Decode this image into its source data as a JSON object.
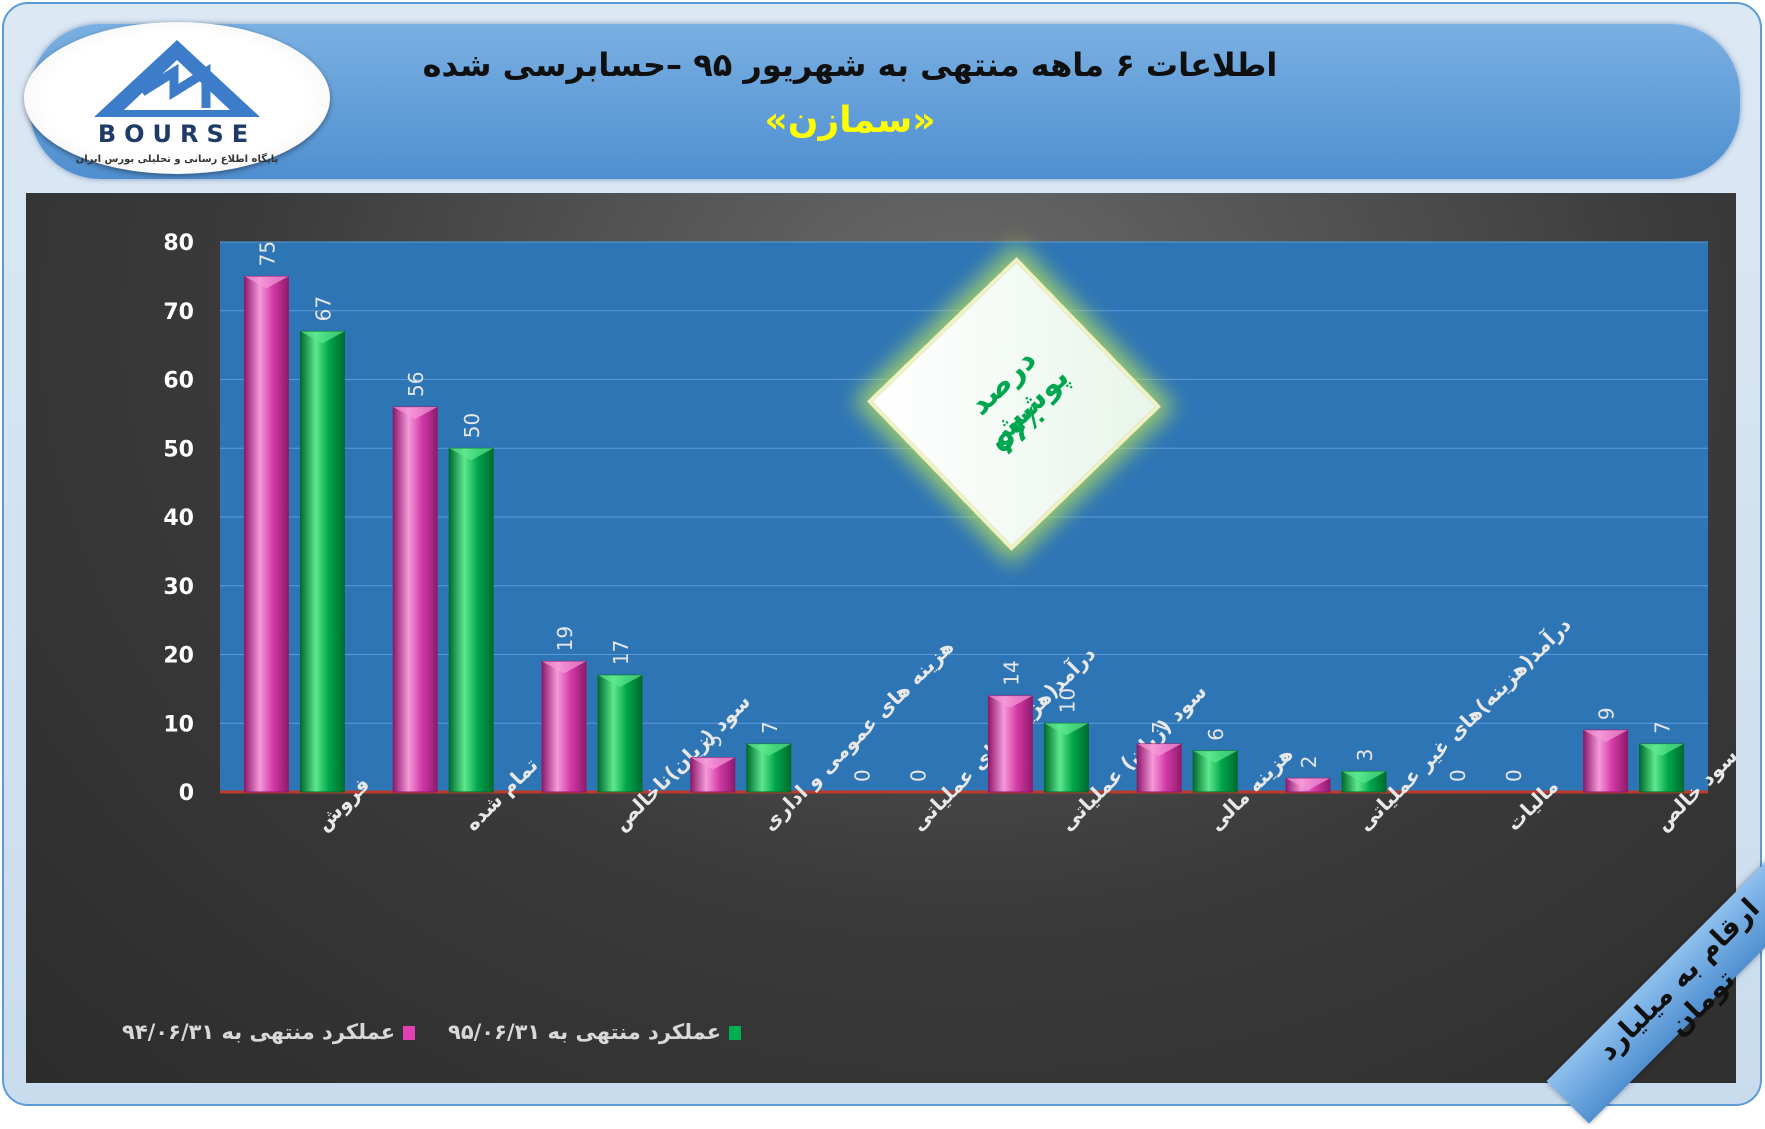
{
  "header": {
    "title": "اطلاعات ۶ ماهه منتهی به شهریور ۹۵ –حسابرسی شده",
    "subtitle": "«سمازن»"
  },
  "logo": {
    "name": "BOURSE",
    "tagline": "پایگاه اطلاع رسانی و تحلیلی بورس ایران"
  },
  "badge": {
    "line1": "درصد پوشش",
    "line2": "۶۶٪"
  },
  "corner_note": "ارقام به میلیارد تومان",
  "colors": {
    "series1": "#e040b0",
    "series2": "#00b050",
    "plot_bg": "#2e75b6",
    "header": "#5b9bd5",
    "title_sub": "#ffff00",
    "badge_text": "#00a650"
  },
  "chart_data": {
    "type": "bar",
    "categories": [
      "فروش",
      "بهای تمام شده",
      "سود (زیان)ناخالص",
      "هزینه های عمومی و اداری",
      "درآمد(هزینه)های عملیاتی",
      "سود (زیان) عملیاتی",
      "هزینه مالی",
      "درآمد(هزینه)های غیر عملیاتی",
      "مالیات",
      "سود خالص"
    ],
    "series": [
      {
        "name": "عملکرد منتهی به ۹۴/۰۶/۳۱",
        "values": [
          75,
          56,
          19,
          5,
          0,
          14,
          7,
          2,
          0,
          9
        ]
      },
      {
        "name": "عملکرد منتهی به ۹۵/۰۶/۳۱",
        "values": [
          67,
          50,
          17,
          7,
          0,
          10,
          6,
          3,
          0,
          7
        ]
      }
    ],
    "yticks": [
      "0",
      "10",
      "20",
      "30",
      "40",
      "50",
      "60",
      "70",
      "80"
    ],
    "ylim": [
      0,
      80
    ],
    "grid": true,
    "legend_position": "bottom-left"
  }
}
